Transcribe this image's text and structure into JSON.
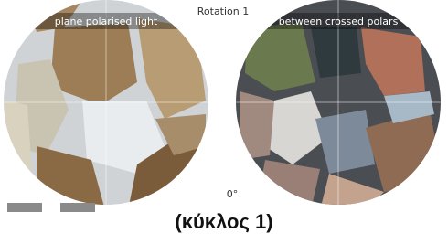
{
  "header": {
    "title": "Rotation 1"
  },
  "views": [
    {
      "label": "plane polarised light"
    },
    {
      "label": "between crossed polars"
    }
  ],
  "rotation": {
    "angle": "0°"
  },
  "caption": "(κύκλος 1)"
}
